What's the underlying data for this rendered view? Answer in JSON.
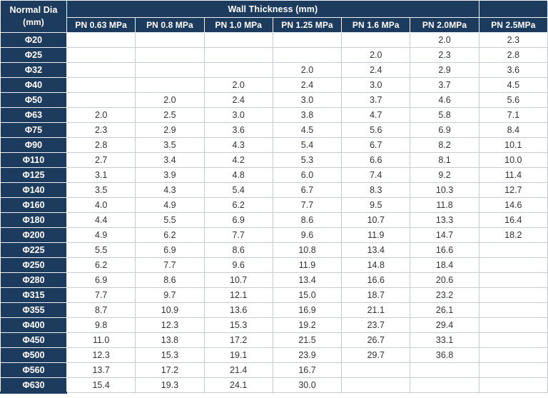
{
  "table": {
    "corner_header": {
      "line1": "Normal Dia",
      "line2": "(mm)"
    },
    "group_header": "Wall Thickness (mm)",
    "columns": [
      "PN 0.63 MPa",
      "PN 0.8 MPa",
      "PN 1.0 MPa",
      "PN 1.25 MPa",
      "PN 1.6 MPa",
      "PN 2.0MPa",
      "PN 2.5MPa"
    ],
    "rows": [
      {
        "dia": "Φ20",
        "values": [
          "",
          "",
          "",
          "",
          "",
          "2.0",
          "2.3"
        ]
      },
      {
        "dia": "Φ25",
        "values": [
          "",
          "",
          "",
          "",
          "2.0",
          "2.3",
          "2.8"
        ]
      },
      {
        "dia": "Φ32",
        "values": [
          "",
          "",
          "",
          "2.0",
          "2.4",
          "2.9",
          "3.6"
        ]
      },
      {
        "dia": "Φ40",
        "values": [
          "",
          "",
          "2.0",
          "2.4",
          "3.0",
          "3.7",
          "4.5"
        ]
      },
      {
        "dia": "Φ50",
        "values": [
          "",
          "2.0",
          "2.4",
          "3.0",
          "3.7",
          "4.6",
          "5.6"
        ]
      },
      {
        "dia": "Φ63",
        "values": [
          "2.0",
          "2.5",
          "3.0",
          "3.8",
          "4.7",
          "5.8",
          "7.1"
        ]
      },
      {
        "dia": "Φ75",
        "values": [
          "2.3",
          "2.9",
          "3.6",
          "4.5",
          "5.6",
          "6.9",
          "8.4"
        ]
      },
      {
        "dia": "Φ90",
        "values": [
          "2.8",
          "3.5",
          "4.3",
          "5.4",
          "6.7",
          "8.2",
          "10.1"
        ]
      },
      {
        "dia": "Φ110",
        "values": [
          "2.7",
          "3.4",
          "4.2",
          "5.3",
          "6.6",
          "8.1",
          "10.0"
        ]
      },
      {
        "dia": "Φ125",
        "values": [
          "3.1",
          "3.9",
          "4.8",
          "6.0",
          "7.4",
          "9.2",
          "11.4"
        ]
      },
      {
        "dia": "Φ140",
        "values": [
          "3.5",
          "4.3",
          "5.4",
          "6.7",
          "8.3",
          "10.3",
          "12.7"
        ]
      },
      {
        "dia": "Φ160",
        "values": [
          "4.0",
          "4.9",
          "6.2",
          "7.7",
          "9.5",
          "11.8",
          "14.6"
        ]
      },
      {
        "dia": "Φ180",
        "values": [
          "4.4",
          "5.5",
          "6.9",
          "8.6",
          "10.7",
          "13.3",
          "16.4"
        ]
      },
      {
        "dia": "Φ200",
        "values": [
          "4.9",
          "6.2",
          "7.7",
          "9.6",
          "11.9",
          "14.7",
          "18.2"
        ]
      },
      {
        "dia": "Φ225",
        "values": [
          "5.5",
          "6.9",
          "8.6",
          "10.8",
          "13.4",
          "16.6",
          ""
        ]
      },
      {
        "dia": "Φ250",
        "values": [
          "6.2",
          "7.7",
          "9.6",
          "11.9",
          "14.8",
          "18.4",
          ""
        ]
      },
      {
        "dia": "Φ280",
        "values": [
          "6.9",
          "8.6",
          "10.7",
          "13.4",
          "16.6",
          "20.6",
          ""
        ]
      },
      {
        "dia": "Φ315",
        "values": [
          "7.7",
          "9.7",
          "12.1",
          "15.0",
          "18.7",
          "23.2",
          ""
        ]
      },
      {
        "dia": "Φ355",
        "values": [
          "8.7",
          "10.9",
          "13.6",
          "16.9",
          "21.1",
          "26.1",
          ""
        ]
      },
      {
        "dia": "Φ400",
        "values": [
          "9.8",
          "12.3",
          "15.3",
          "19.2",
          "23.7",
          "29.4",
          ""
        ]
      },
      {
        "dia": "Φ450",
        "values": [
          "11.0",
          "13.8",
          "17.2",
          "21.5",
          "26.7",
          "33.1",
          ""
        ]
      },
      {
        "dia": "Φ500",
        "values": [
          "12.3",
          "15.3",
          "19.1",
          "23.9",
          "29.7",
          "36.8",
          ""
        ]
      },
      {
        "dia": "Φ560",
        "values": [
          "13.7",
          "17.2",
          "21.4",
          "16.7",
          "",
          "",
          ""
        ]
      },
      {
        "dia": "Φ630",
        "values": [
          "15.4",
          "19.3",
          "24.1",
          "30.0",
          "",
          "",
          ""
        ]
      }
    ]
  },
  "colors": {
    "header_bg": "#1c3b5d",
    "header_text": "#ffffff",
    "body_text": "#333333",
    "body_border": "#c6cbd3"
  }
}
